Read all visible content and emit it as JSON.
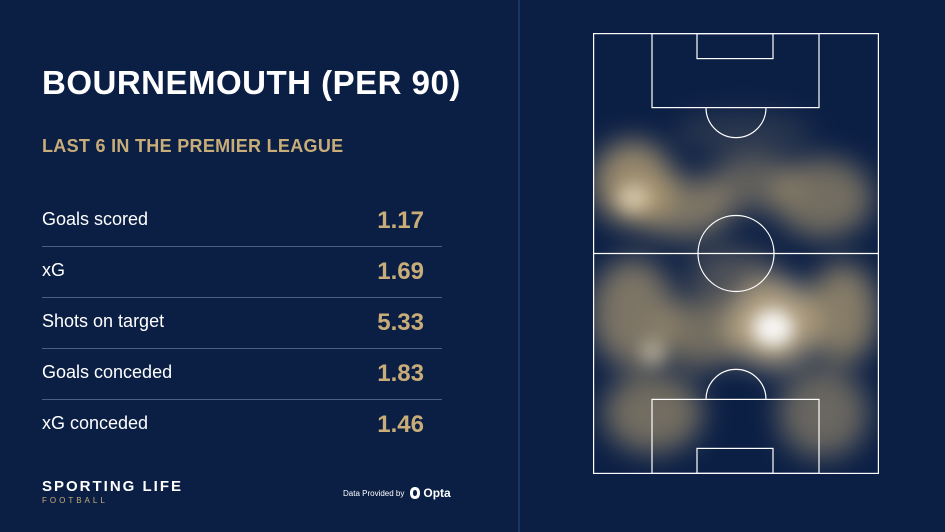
{
  "title": "BOURNEMOUTH (PER 90)",
  "subtitle": "LAST 6 IN THE PREMIER LEAGUE",
  "stats": [
    {
      "label": "Goals scored",
      "value": "1.17"
    },
    {
      "label": "xG",
      "value": "1.69"
    },
    {
      "label": "Shots on target",
      "value": "5.33"
    },
    {
      "label": "Goals conceded",
      "value": "1.83"
    },
    {
      "label": "xG conceded",
      "value": "1.46"
    }
  ],
  "brand": {
    "name": "SPORTING LIFE",
    "sub": "FOOTBALL"
  },
  "credit": {
    "text": "Data Provided by",
    "provider": "Opta"
  },
  "colors": {
    "background": "#0b1f45",
    "accent": "#c8ad79",
    "text": "#ffffff"
  },
  "icons": {
    "opta_logo": "opta-logo-icon"
  }
}
